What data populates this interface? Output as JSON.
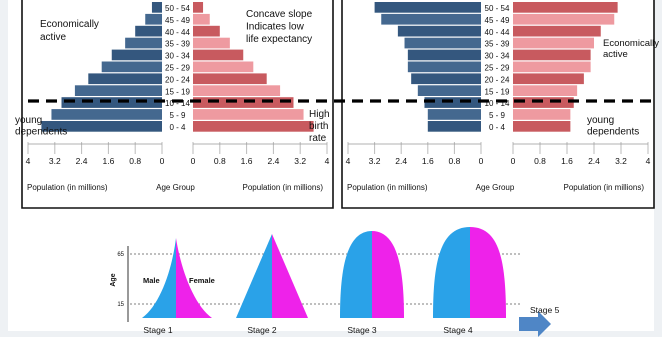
{
  "colors": {
    "male": "#34577e",
    "male_light": "#7f9dbd",
    "female": "#c85a5f",
    "female_light": "#ee9aa0",
    "cyan": "#2aa2e8",
    "magenta": "#ee22ea",
    "frame": "#111111",
    "arrow": "#4f86c6"
  },
  "chart_data": [
    {
      "type": "bar",
      "subtype": "population-pyramid",
      "categories": [
        "0 - 4",
        "5 - 9",
        "10 - 14",
        "15 - 19",
        "20 - 24",
        "25 - 29",
        "30 - 34",
        "35 - 39",
        "40 - 44",
        "45 - 49",
        "50 - 54"
      ],
      "series": [
        {
          "side": "left",
          "values": [
            3.6,
            3.3,
            3.0,
            2.6,
            2.2,
            1.8,
            1.5,
            1.1,
            0.8,
            0.5,
            0.3
          ]
        },
        {
          "side": "right",
          "values": [
            3.6,
            3.3,
            3.0,
            2.6,
            2.2,
            1.8,
            1.5,
            1.1,
            0.8,
            0.5,
            0.3
          ]
        }
      ],
      "x_ticks": [
        "4",
        "3.2",
        "2.4",
        "1.6",
        "0.8",
        "0",
        "0",
        "0.8",
        "1.6",
        "2.4",
        "3.2",
        "4"
      ],
      "xlabel_left": "Population (in millions)",
      "xlabel_center": "Age Group",
      "xlabel_right": "Population (in millions)",
      "xlim": [
        0,
        4
      ],
      "annotations": {
        "top_left": [
          "Economically",
          "active"
        ],
        "top_right": [
          "Concave slope",
          "Indicates low",
          "life expectancy"
        ],
        "bottom_left": [
          "young",
          "dependents"
        ],
        "bottom_right": [
          "High",
          "birth",
          "rate"
        ]
      }
    },
    {
      "type": "bar",
      "subtype": "population-pyramid",
      "categories": [
        "0 - 4",
        "5 - 9",
        "10 - 14",
        "15 - 19",
        "20 - 24",
        "25 - 29",
        "30 - 34",
        "35 - 39",
        "40 - 44",
        "45 - 49",
        "50 - 54"
      ],
      "series": [
        {
          "side": "left",
          "values": [
            1.6,
            1.6,
            1.7,
            1.9,
            2.1,
            2.2,
            2.2,
            2.3,
            2.5,
            3.0,
            3.2
          ]
        },
        {
          "side": "right",
          "values": [
            1.7,
            1.7,
            1.8,
            1.9,
            2.1,
            2.3,
            2.3,
            2.4,
            2.6,
            3.0,
            3.1
          ]
        }
      ],
      "x_ticks": [
        "4",
        "3.2",
        "2.4",
        "1.6",
        "0.8",
        "0",
        "0",
        "0.8",
        "1.6",
        "2.4",
        "3.2",
        "4"
      ],
      "xlabel_left": "Population (in millions)",
      "xlabel_center": "Age Group",
      "xlabel_right": "Population (in millions)",
      "xlim": [
        0,
        4
      ],
      "annotations": {
        "top_right": [
          "Economically",
          "active"
        ],
        "bottom_right": [
          "young",
          "dependents"
        ]
      }
    }
  ],
  "stages": {
    "ylabel": "Age",
    "tick_top": "65",
    "tick_bottom": "15",
    "male_label": "Male",
    "female_label": "Female",
    "arrow_label": "Stage 5",
    "stage_labels": [
      "Stage 1",
      "Stage 2",
      "Stage 3",
      "Stage 4"
    ]
  }
}
